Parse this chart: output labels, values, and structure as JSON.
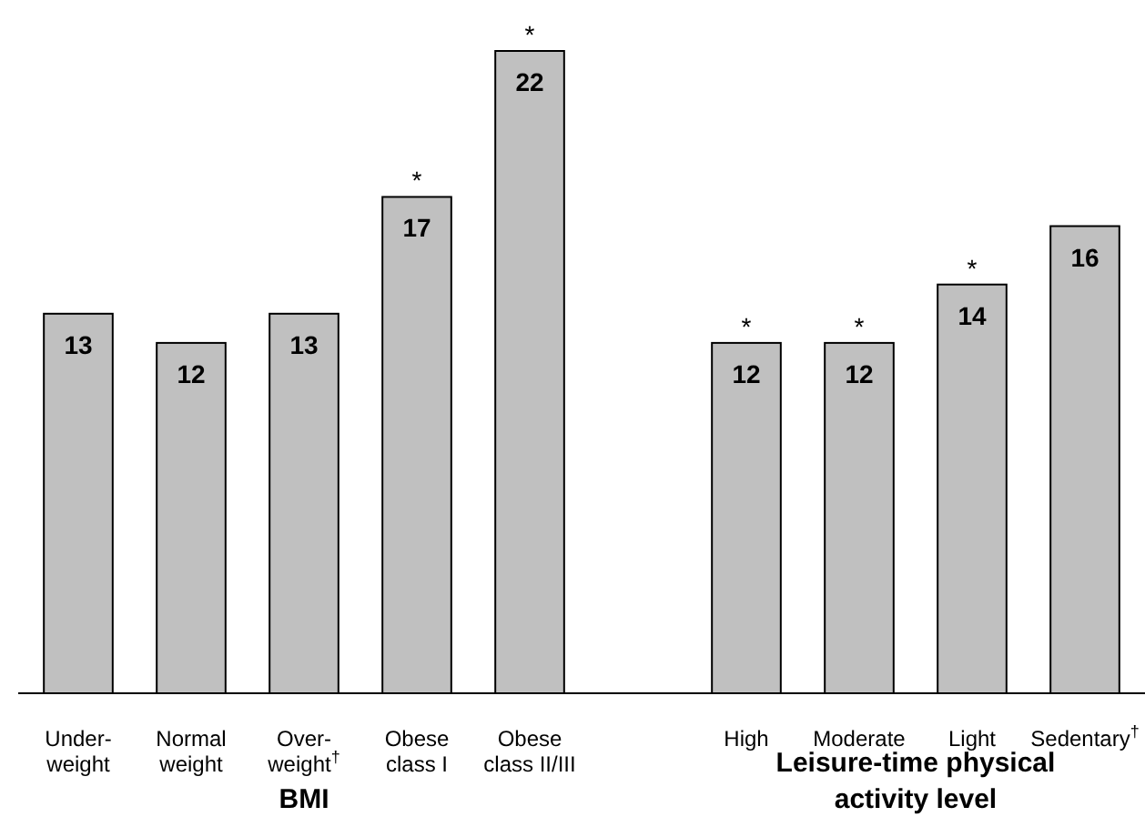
{
  "chart_data": [
    {
      "type": "bar",
      "xlabel": "BMI",
      "categories": [
        "Under-\nweight",
        "Normal\nweight",
        "Over-\nweight$^{†}$",
        "Obese\nclass I",
        "Obese\nclass II/III"
      ],
      "values": [
        13,
        12,
        13,
        17,
        22
      ],
      "color": "#c0c0c0",
      "data_labels": true,
      "annotations": [
        {
          "text": "*",
          "x": "Obese\nclass I",
          "y": 17
        },
        {
          "text": "*",
          "x": "Obese\nclass II/III",
          "y": 22
        }
      ]
    },
    {
      "type": "bar",
      "xlabel": "Leisure-time physical\nactivity level",
      "categories": [
        "High",
        "Moderate",
        "Light",
        "Sedentary$^{†}$"
      ],
      "values": [
        12,
        12,
        14,
        16
      ],
      "color": "#c0c0c0",
      "data_labels": true,
      "annotations": [
        {
          "text": "*",
          "x": "High",
          "y": 12
        },
        {
          "text": "*",
          "x": "Moderate",
          "y": 12
        },
        {
          "text": "*",
          "x": "Light",
          "y": 14
        }
      ]
    }
  ]
}
